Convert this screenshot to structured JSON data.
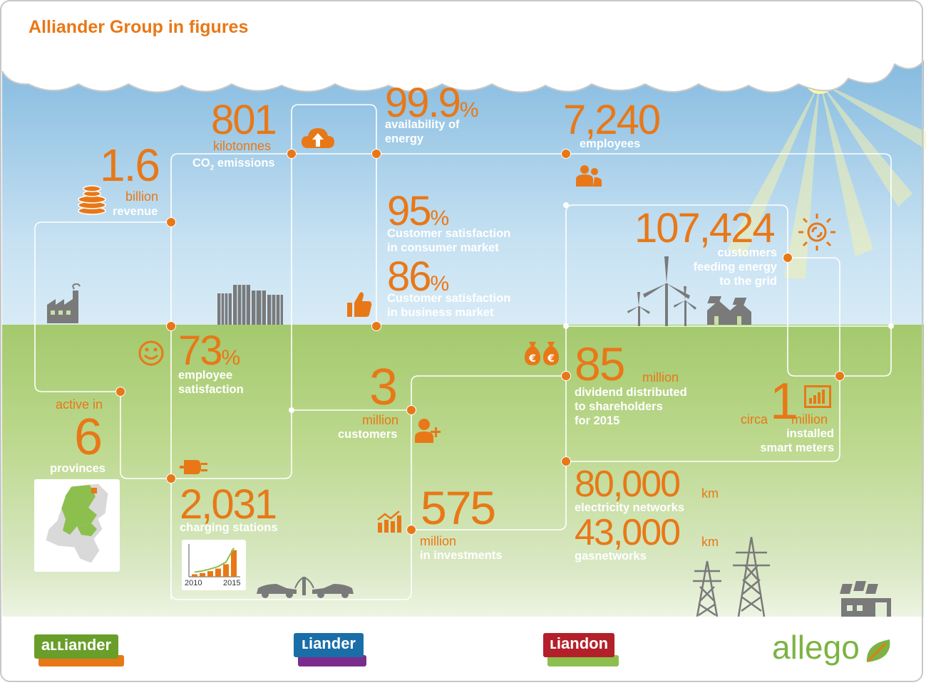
{
  "title": "Alliander Group in figures",
  "revenue": {
    "value": "1.6",
    "unit": "billion",
    "label": "revenue"
  },
  "co2": {
    "value": "801",
    "unit": "kilotonnes",
    "label_pre": "CO",
    "label_sub": "2",
    "label_post": " emissions"
  },
  "availability": {
    "value": "99.9",
    "pct": "%",
    "label1": "availability of",
    "label2": "energy"
  },
  "employees": {
    "value": "7,240",
    "label": "employees"
  },
  "consumer": {
    "value": "95",
    "pct": "%",
    "label1": "Customer satisfaction",
    "label2": "in consumer market"
  },
  "business": {
    "value": "86",
    "pct": "%",
    "label1": "Customer satisfaction",
    "label2": "in business market"
  },
  "feeding": {
    "value": "107,424",
    "label1": "customers",
    "label2": "feeding energy",
    "label3": "to the grid"
  },
  "emp_sat": {
    "value": "73",
    "pct": "%",
    "label1": "employee",
    "label2": "satisfaction"
  },
  "provinces": {
    "pre": "active in",
    "value": "6",
    "label": "provinces"
  },
  "customers": {
    "value": "3",
    "unit": "million",
    "label": "customers"
  },
  "dividend": {
    "value": "85",
    "unit": "million",
    "label1": "dividend distributed",
    "label2": "to shareholders",
    "label3": "for 2015"
  },
  "meters": {
    "pre": "circa",
    "value": "1",
    "unit": "million",
    "label1": "installed",
    "label2": "smart meters"
  },
  "charging": {
    "value": "2,031",
    "label": "charging stations",
    "year_start": "2010",
    "year_end": "2015",
    "bars": [
      0.08,
      0.12,
      0.18,
      0.26,
      0.4,
      0.85
    ]
  },
  "investments": {
    "value": "575",
    "unit": "million",
    "label": "in investments"
  },
  "electricity": {
    "value": "80,000",
    "unit": "km",
    "label": "electricity networks"
  },
  "gas": {
    "value": "43,000",
    "unit": "km",
    "label": "gasnetworks"
  },
  "logos": {
    "alliander": "aʟʟiander",
    "liander": "ʟiander",
    "liandon": "ʟiandon",
    "allego": "allego"
  },
  "colors": {
    "orange": "#e87817",
    "sky": "#7fb7de",
    "grass": "#a4c96d",
    "allego_green": "#7cb342"
  }
}
